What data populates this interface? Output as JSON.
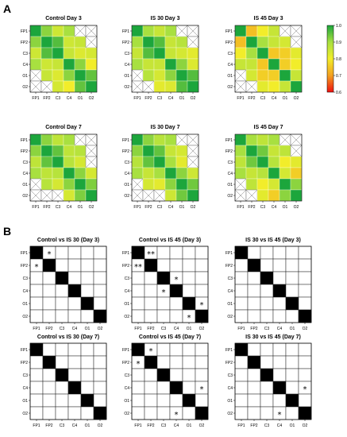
{
  "figure": {
    "panel_a_label": "A",
    "panel_b_label": "B"
  },
  "chart_data": [
    {
      "type": "heatmap",
      "panel": "A",
      "title": "Control Day 3",
      "categories": [
        "FP1",
        "FP2",
        "C3",
        "C4",
        "O1",
        "O2"
      ],
      "values": [
        [
          1.0,
          0.92,
          0.85,
          0.9,
          null,
          null
        ],
        [
          0.92,
          1.0,
          0.96,
          0.85,
          0.86,
          null
        ],
        [
          0.85,
          0.96,
          1.0,
          0.86,
          0.83,
          0.84
        ],
        [
          0.9,
          0.85,
          0.86,
          1.0,
          0.92,
          0.8
        ],
        [
          null,
          0.86,
          0.83,
          0.92,
          1.0,
          0.95
        ],
        [
          null,
          null,
          0.84,
          0.8,
          0.95,
          1.0
        ]
      ]
    },
    {
      "type": "heatmap",
      "panel": "A",
      "title": "IS 30 Day 3",
      "categories": [
        "FP1",
        "FP2",
        "C3",
        "C4",
        "O1",
        "O2"
      ],
      "values": [
        [
          1.0,
          0.9,
          0.86,
          0.9,
          null,
          null
        ],
        [
          0.9,
          1.0,
          0.96,
          0.86,
          0.88,
          null
        ],
        [
          0.86,
          0.96,
          1.0,
          0.86,
          0.84,
          0.82
        ],
        [
          0.9,
          0.86,
          0.86,
          1.0,
          0.92,
          0.83
        ],
        [
          null,
          0.88,
          0.84,
          0.92,
          1.0,
          0.96
        ],
        [
          null,
          null,
          0.82,
          0.83,
          0.96,
          1.0
        ]
      ]
    },
    {
      "type": "heatmap",
      "panel": "A",
      "title": "IS 45 Day 3",
      "categories": [
        "FP1",
        "FP2",
        "C3",
        "C4",
        "O1",
        "O2"
      ],
      "values": [
        [
          1.0,
          0.74,
          0.8,
          0.86,
          null,
          null
        ],
        [
          0.74,
          1.0,
          0.9,
          0.86,
          0.84,
          null
        ],
        [
          0.8,
          0.9,
          1.0,
          0.75,
          0.76,
          0.82
        ],
        [
          0.86,
          0.86,
          0.75,
          1.0,
          0.76,
          0.8
        ],
        [
          null,
          0.84,
          0.76,
          0.76,
          1.0,
          0.86
        ],
        [
          null,
          null,
          0.82,
          0.8,
          0.86,
          1.0
        ]
      ]
    },
    {
      "type": "heatmap",
      "panel": "A",
      "title": "Control Day 7",
      "categories": [
        "FP1",
        "FP2",
        "C3",
        "C4",
        "O1",
        "O2"
      ],
      "values": [
        [
          1.0,
          0.92,
          0.87,
          0.9,
          null,
          null
        ],
        [
          0.92,
          1.0,
          0.95,
          0.87,
          0.88,
          null
        ],
        [
          0.87,
          0.95,
          1.0,
          0.88,
          0.84,
          null
        ],
        [
          0.9,
          0.87,
          0.88,
          1.0,
          0.92,
          0.84
        ],
        [
          null,
          0.88,
          0.84,
          0.92,
          1.0,
          0.93
        ],
        [
          null,
          null,
          null,
          0.84,
          0.93,
          1.0
        ]
      ]
    },
    {
      "type": "heatmap",
      "panel": "A",
      "title": "IS 30 Day 7",
      "categories": [
        "FP1",
        "FP2",
        "C3",
        "C4",
        "O1",
        "O2"
      ],
      "values": [
        [
          1.0,
          0.92,
          0.88,
          0.9,
          null,
          null
        ],
        [
          0.92,
          1.0,
          0.95,
          0.86,
          0.84,
          null
        ],
        [
          0.88,
          0.95,
          1.0,
          0.9,
          0.82,
          null
        ],
        [
          0.9,
          0.86,
          0.9,
          1.0,
          0.92,
          0.85
        ],
        [
          null,
          0.84,
          0.82,
          0.92,
          1.0,
          0.94
        ],
        [
          null,
          null,
          null,
          0.85,
          0.94,
          1.0
        ]
      ]
    },
    {
      "type": "heatmap",
      "panel": "A",
      "title": "IS 45 Day 7",
      "categories": [
        "FP1",
        "FP2",
        "C3",
        "C4",
        "O1",
        "O2"
      ],
      "values": [
        [
          1.0,
          0.9,
          0.87,
          0.9,
          null,
          null
        ],
        [
          0.9,
          1.0,
          0.94,
          0.86,
          0.87,
          null
        ],
        [
          0.87,
          0.94,
          1.0,
          0.88,
          0.8,
          0.82
        ],
        [
          0.9,
          0.86,
          0.88,
          1.0,
          0.84,
          0.76
        ],
        [
          null,
          0.87,
          0.8,
          0.84,
          1.0,
          0.92
        ],
        [
          null,
          null,
          0.82,
          0.76,
          0.92,
          1.0
        ]
      ]
    },
    {
      "type": "heatmap",
      "panel": "A",
      "title": "colorbar",
      "ticks": [
        1.0,
        0.9,
        0.8,
        0.7,
        0.6
      ],
      "ylim": [
        0.6,
        1.0
      ],
      "colors": [
        "#ee1111",
        "#f3a020",
        "#f2ed2a",
        "#a8e040",
        "#1ca63c"
      ]
    },
    {
      "type": "table",
      "panel": "B",
      "title": "Control vs IS 30 (Day 3)",
      "categories": [
        "FP1",
        "FP2",
        "C3",
        "C4",
        "O1",
        "O2"
      ],
      "stars": [
        {
          "row": 0,
          "col": 1,
          "text": "*"
        },
        {
          "row": 1,
          "col": 0,
          "text": "*"
        }
      ]
    },
    {
      "type": "table",
      "panel": "B",
      "title": "Control vs IS 45 (Day 3)",
      "categories": [
        "FP1",
        "FP2",
        "C3",
        "C4",
        "O1",
        "O2"
      ],
      "stars": [
        {
          "row": 0,
          "col": 1,
          "text": "**"
        },
        {
          "row": 1,
          "col": 0,
          "text": "**"
        },
        {
          "row": 2,
          "col": 3,
          "text": "*"
        },
        {
          "row": 3,
          "col": 2,
          "text": "*"
        },
        {
          "row": 4,
          "col": 5,
          "text": "*"
        },
        {
          "row": 5,
          "col": 4,
          "text": "*"
        }
      ]
    },
    {
      "type": "table",
      "panel": "B",
      "title": "IS 30 vs IS 45 (Day 3)",
      "categories": [
        "FP1",
        "FP2",
        "C3",
        "C4",
        "O1",
        "O2"
      ],
      "stars": []
    },
    {
      "type": "table",
      "panel": "B",
      "title": "Control vs IS 30 (Day 7)",
      "categories": [
        "FP1",
        "FP2",
        "C3",
        "C4",
        "O1",
        "O2"
      ],
      "stars": []
    },
    {
      "type": "table",
      "panel": "B",
      "title": "Control vs IS 45 (Day 7)",
      "categories": [
        "FP1",
        "FP2",
        "C3",
        "C4",
        "O1",
        "O2"
      ],
      "stars": [
        {
          "row": 0,
          "col": 1,
          "text": "*"
        },
        {
          "row": 1,
          "col": 0,
          "text": "*"
        },
        {
          "row": 3,
          "col": 5,
          "text": "*"
        },
        {
          "row": 5,
          "col": 3,
          "text": "*"
        }
      ]
    },
    {
      "type": "table",
      "panel": "B",
      "title": "IS 30 vs IS 45 (Day 7)",
      "categories": [
        "FP1",
        "FP2",
        "C3",
        "C4",
        "O1",
        "O2"
      ],
      "stars": [
        {
          "row": 3,
          "col": 5,
          "text": "*"
        },
        {
          "row": 5,
          "col": 3,
          "text": "*"
        }
      ]
    }
  ]
}
